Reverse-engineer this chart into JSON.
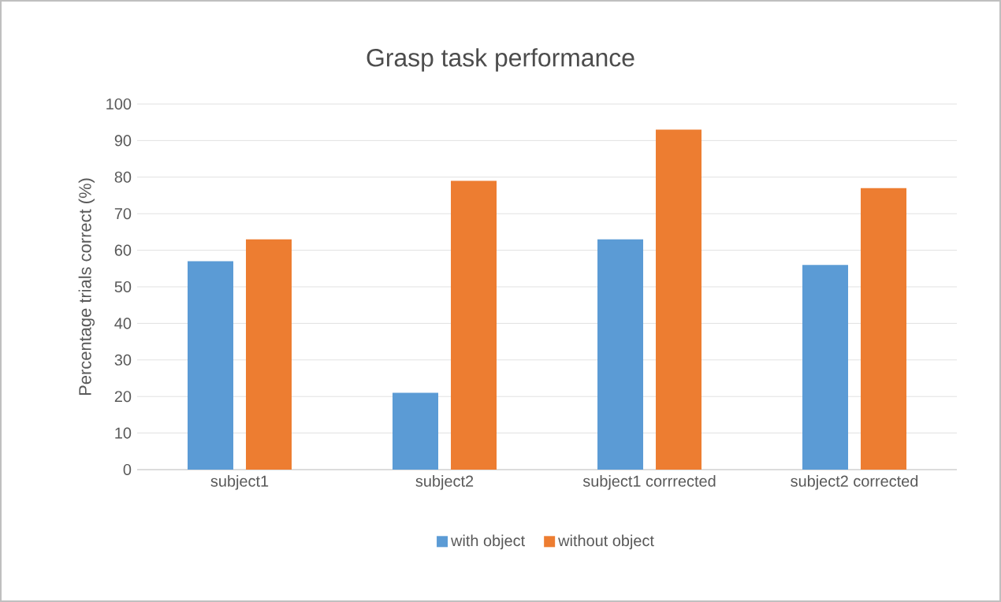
{
  "chart_data": {
    "type": "bar",
    "title": "Grasp task performance",
    "ylabel": "Percentage trials correct (%)",
    "categories": [
      "subject1",
      "subject2",
      "subject1 corrrected",
      "subject2 corrected"
    ],
    "series": [
      {
        "name": "with object",
        "color": "#5b9bd5",
        "values": [
          57,
          21,
          63,
          56
        ]
      },
      {
        "name": "without object",
        "color": "#ed7d31",
        "values": [
          63,
          79,
          93,
          77
        ]
      }
    ],
    "ylim": [
      0,
      100
    ],
    "yticks": [
      0,
      10,
      20,
      30,
      40,
      50,
      60,
      70,
      80,
      90,
      100
    ],
    "grid": "y",
    "legend": "bottom"
  }
}
